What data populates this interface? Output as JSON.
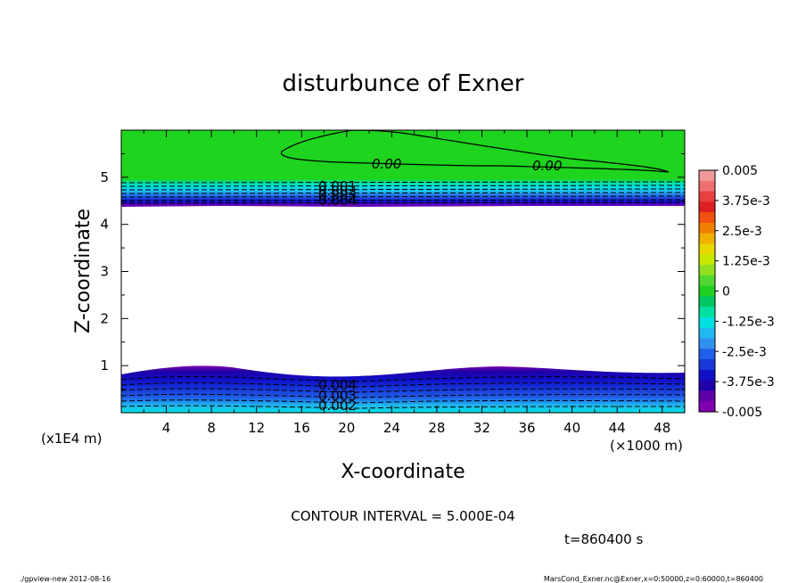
{
  "chart_data": {
    "type": "heatmap",
    "subtype": "filled-contour",
    "title": "disturbunce of Exner",
    "xlabel": "X-coordinate",
    "ylabel": "Z-coordinate",
    "xunit": "(×1000 m)",
    "yunit": "(x1E4 m)",
    "xlim": [
      0,
      50
    ],
    "ylim": [
      0,
      6
    ],
    "xticks": [
      4,
      8,
      12,
      16,
      20,
      24,
      28,
      32,
      36,
      40,
      44,
      48
    ],
    "yticks": [
      1,
      2,
      3,
      4,
      5
    ],
    "colorbar": {
      "labels": [
        "0.005",
        "3.75e-3",
        "2.5e-3",
        "1.25e-3",
        "0",
        "-1.25e-3",
        "-2.5e-3",
        "-3.75e-3",
        "-0.005"
      ],
      "range": [
        -0.005,
        0.005
      ],
      "colors": [
        "#f29a9a",
        "#f07070",
        "#e84040",
        "#e02020",
        "#f05010",
        "#f08000",
        "#f0b000",
        "#e8d800",
        "#c8e800",
        "#90e020",
        "#50d830",
        "#20d020",
        "#00c860",
        "#00e0a0",
        "#00e0e0",
        "#20b8f0",
        "#3090f0",
        "#2060e8",
        "#1838d8",
        "#1010c8",
        "#2000a8",
        "#6000a8",
        "#8000b0"
      ]
    },
    "contour_labels": {
      "upper_zero": [
        "0.00",
        "0.00"
      ],
      "upper_band": [
        "0.001",
        "0.002",
        "0.003",
        "0.004"
      ],
      "lower_band": [
        "0.004",
        "0.003",
        "0.002"
      ]
    },
    "bands": [
      {
        "name": "upper",
        "z_range": [
          4.35,
          4.85
        ],
        "value_range": [
          -0.005,
          -0.0005
        ]
      },
      {
        "name": "lower",
        "z_range": [
          0,
          0.95
        ],
        "value_range": [
          -0.005,
          -0.0005
        ]
      }
    ],
    "contour_interval_text": "CONTOUR INTERVAL = 5.000E-04",
    "time_text": "t=860400 s"
  },
  "footer": {
    "left": "./gpview-new  2012-08-16",
    "right": "MarsCond_Exner.nc@Exner,x=0:50000,z=0:60000,t=860400"
  },
  "colors": {
    "top_green": "#1ed41e",
    "axis": "#000000"
  }
}
